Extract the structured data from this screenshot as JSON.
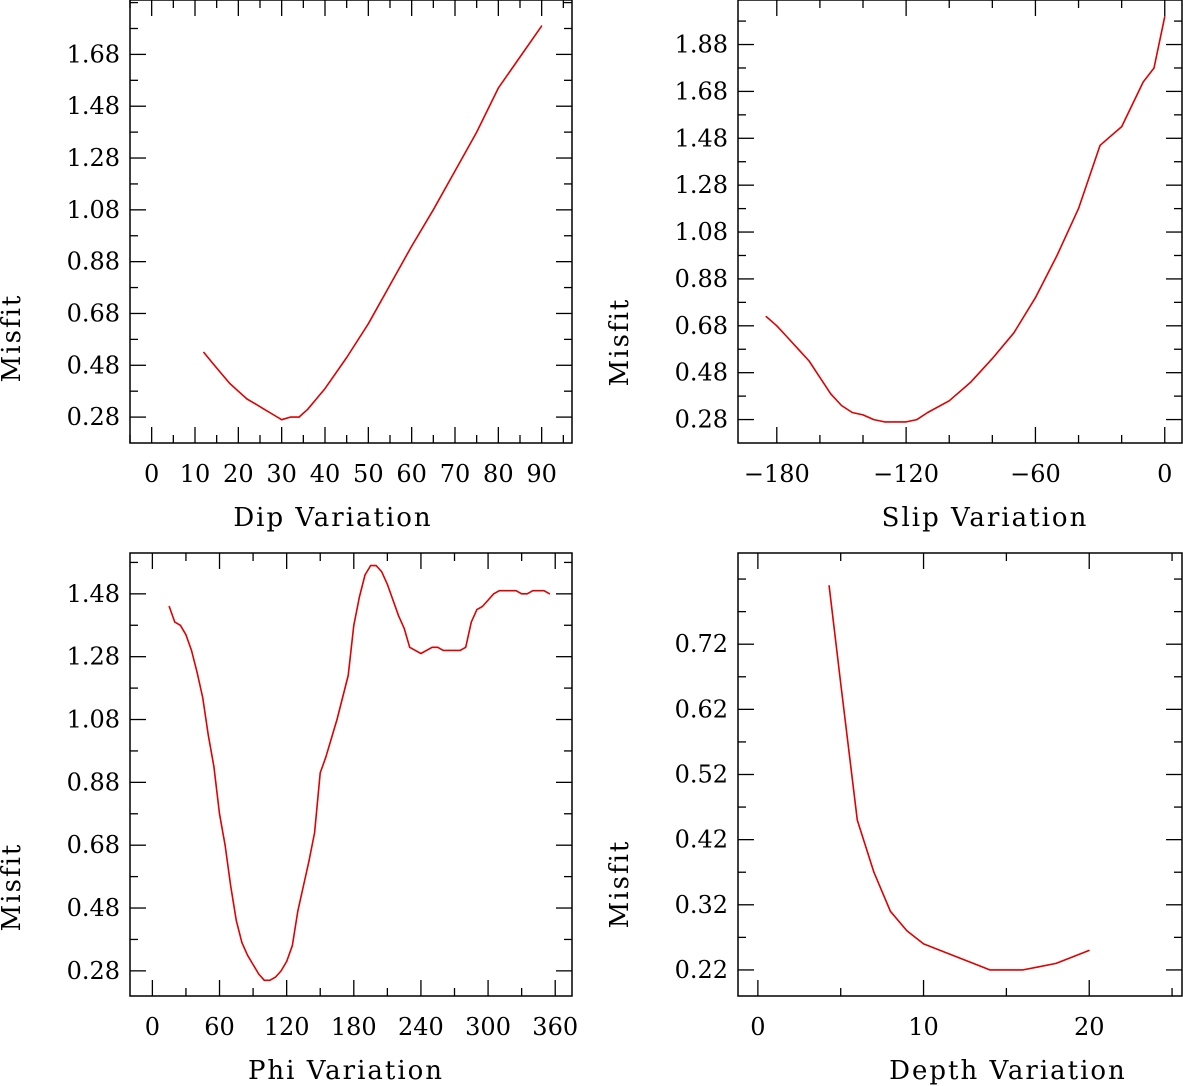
{
  "colors": {
    "curve": "#e00000",
    "axes": "#000000",
    "background": "#ffffff"
  },
  "chart_data": [
    {
      "type": "line",
      "title": "",
      "xlabel": "Dip     Variation",
      "ylabel": "Misfit",
      "xlim": [
        -5,
        97
      ],
      "ylim": [
        0.18,
        1.89
      ],
      "x_ticks": [
        0,
        10,
        20,
        30,
        40,
        50,
        60,
        70,
        80,
        90
      ],
      "x_tick_labels": [
        "0",
        "10",
        "20",
        "30",
        "40",
        "50",
        "60",
        "70",
        "80",
        "90"
      ],
      "x_minor_step": 5,
      "y_ticks": [
        0.28,
        0.48,
        0.68,
        0.88,
        1.08,
        1.28,
        1.48,
        1.68
      ],
      "y_tick_labels": [
        "0.28",
        "0.48",
        "0.68",
        "0.88",
        "1.08",
        "1.28",
        "1.48",
        "1.68"
      ],
      "y_minor_step": 0.1,
      "series": [
        {
          "name": "misfit",
          "x": [
            12,
            14,
            16,
            18,
            20,
            22,
            24,
            26,
            28,
            30,
            32,
            34,
            36,
            38,
            40,
            45,
            50,
            55,
            60,
            65,
            70,
            75,
            80,
            85,
            90
          ],
          "y": [
            0.53,
            0.49,
            0.45,
            0.41,
            0.38,
            0.35,
            0.33,
            0.31,
            0.29,
            0.27,
            0.28,
            0.28,
            0.31,
            0.35,
            0.39,
            0.51,
            0.64,
            0.79,
            0.94,
            1.08,
            1.23,
            1.38,
            1.55,
            1.67,
            1.79
          ]
        }
      ]
    },
    {
      "type": "line",
      "title": "",
      "xlabel": "Slip   Variation",
      "ylabel": "Misfit",
      "xlim": [
        -198,
        8
      ],
      "ylim": [
        0.18,
        2.07
      ],
      "x_ticks": [
        -180,
        -120,
        -60,
        0
      ],
      "x_tick_labels": [
        "−180",
        "−120",
        "−60",
        "0"
      ],
      "x_minor_step": 20,
      "y_ticks": [
        0.28,
        0.48,
        0.68,
        0.88,
        1.08,
        1.28,
        1.48,
        1.68,
        1.88
      ],
      "y_tick_labels": [
        "0.28",
        "0.48",
        "0.68",
        "0.88",
        "1.08",
        "1.28",
        "1.48",
        "1.68",
        "1.88"
      ],
      "y_minor_step": 0.1,
      "series": [
        {
          "name": "misfit",
          "x": [
            -185,
            -180,
            -175,
            -170,
            -165,
            -160,
            -155,
            -150,
            -145,
            -140,
            -135,
            -130,
            -125,
            -120,
            -115,
            -110,
            -100,
            -90,
            -80,
            -70,
            -60,
            -50,
            -40,
            -30,
            -20,
            -10,
            -5,
            0
          ],
          "y": [
            0.72,
            0.68,
            0.63,
            0.58,
            0.53,
            0.46,
            0.39,
            0.34,
            0.31,
            0.3,
            0.28,
            0.27,
            0.27,
            0.27,
            0.28,
            0.31,
            0.36,
            0.44,
            0.54,
            0.65,
            0.8,
            0.98,
            1.18,
            1.45,
            1.53,
            1.72,
            1.78,
            2.0
          ]
        }
      ]
    },
    {
      "type": "line",
      "title": "",
      "xlabel": "Phi     Variation",
      "ylabel": "Misfit",
      "xlim": [
        -20,
        375
      ],
      "ylim": [
        0.2,
        1.61
      ],
      "x_ticks": [
        0,
        60,
        120,
        180,
        240,
        300,
        360
      ],
      "x_tick_labels": [
        "0",
        "60",
        "120",
        "180",
        "240",
        "300",
        "360"
      ],
      "x_minor_step": 30,
      "y_ticks": [
        0.28,
        0.48,
        0.68,
        0.88,
        1.08,
        1.28,
        1.48
      ],
      "y_tick_labels": [
        "0.28",
        "0.48",
        "0.68",
        "0.88",
        "1.08",
        "1.28",
        "1.48"
      ],
      "y_minor_step": 0.1,
      "series": [
        {
          "name": "misfit",
          "x": [
            15,
            20,
            25,
            30,
            35,
            40,
            45,
            50,
            55,
            60,
            65,
            70,
            75,
            80,
            85,
            90,
            95,
            100,
            105,
            110,
            115,
            120,
            125,
            130,
            135,
            140,
            145,
            150,
            155,
            160,
            165,
            170,
            175,
            180,
            185,
            190,
            195,
            200,
            205,
            210,
            215,
            220,
            225,
            230,
            235,
            240,
            245,
            250,
            255,
            260,
            265,
            270,
            275,
            280,
            285,
            290,
            295,
            300,
            305,
            310,
            315,
            320,
            325,
            330,
            335,
            340,
            345,
            350,
            355
          ],
          "y": [
            1.44,
            1.39,
            1.38,
            1.35,
            1.3,
            1.23,
            1.15,
            1.03,
            0.93,
            0.78,
            0.68,
            0.55,
            0.44,
            0.37,
            0.33,
            0.3,
            0.27,
            0.25,
            0.25,
            0.26,
            0.28,
            0.31,
            0.36,
            0.47,
            0.55,
            0.63,
            0.72,
            0.91,
            0.96,
            1.02,
            1.08,
            1.15,
            1.22,
            1.38,
            1.47,
            1.54,
            1.57,
            1.57,
            1.55,
            1.51,
            1.46,
            1.41,
            1.37,
            1.31,
            1.3,
            1.29,
            1.3,
            1.31,
            1.31,
            1.3,
            1.3,
            1.3,
            1.3,
            1.31,
            1.39,
            1.43,
            1.44,
            1.46,
            1.48,
            1.49,
            1.49,
            1.49,
            1.49,
            1.48,
            1.48,
            1.49,
            1.49,
            1.49,
            1.48
          ]
        }
      ]
    },
    {
      "type": "line",
      "title": "",
      "xlabel": "Depth   Variation",
      "ylabel": "Misfit",
      "xlim": [
        -1.2,
        25.6
      ],
      "ylim": [
        0.18,
        0.86
      ],
      "x_ticks": [
        0,
        10,
        20
      ],
      "x_tick_labels": [
        "0",
        "10",
        "20"
      ],
      "x_minor_step": 5,
      "y_ticks": [
        0.22,
        0.32,
        0.42,
        0.52,
        0.62,
        0.72
      ],
      "y_tick_labels": [
        "0.22",
        "0.32",
        "0.42",
        "0.52",
        "0.62",
        "0.72"
      ],
      "y_minor_step": 0.05,
      "series": [
        {
          "name": "misfit",
          "x": [
            4.3,
            5,
            6,
            7,
            8,
            9,
            10,
            11,
            12,
            13,
            14,
            15,
            16,
            17,
            18,
            19,
            20
          ],
          "y": [
            0.81,
            0.66,
            0.45,
            0.37,
            0.31,
            0.28,
            0.26,
            0.25,
            0.24,
            0.23,
            0.22,
            0.22,
            0.22,
            0.225,
            0.23,
            0.24,
            0.25
          ]
        }
      ]
    }
  ]
}
